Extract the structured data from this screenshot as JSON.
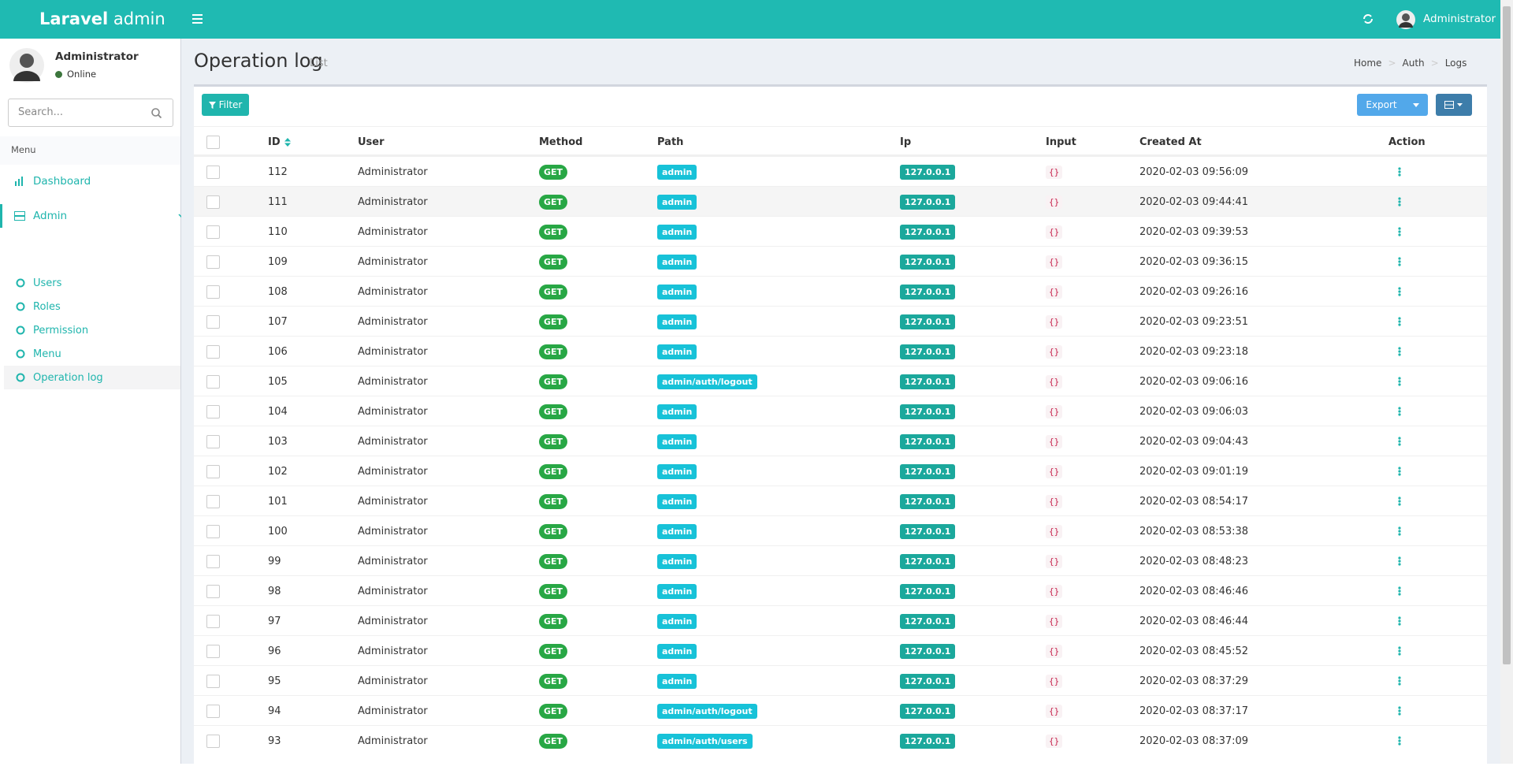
{
  "header": {
    "brand_bold": "Laravel",
    "brand_light": "admin",
    "user": "Administrator"
  },
  "sidebar": {
    "user": "Administrator",
    "status": "Online",
    "search_placeholder": "Search...",
    "menu_label": "Menu",
    "items": [
      "Dashboard",
      "Admin"
    ],
    "children": [
      "Users",
      "Roles",
      "Permission",
      "Menu",
      "Operation log"
    ]
  },
  "page": {
    "title": "Operation log",
    "subtitle": "List",
    "breadcrumb": [
      "Home",
      "Auth",
      "Logs"
    ]
  },
  "toolbar": {
    "filter": "Filter",
    "export": "Export"
  },
  "table": {
    "columns": [
      "ID",
      "User",
      "Method",
      "Path",
      "Ip",
      "Input",
      "Created At",
      "Action"
    ],
    "rows": [
      [
        "112",
        "Administrator",
        "GET",
        "admin",
        "127.0.0.1",
        "{}",
        "2020-02-03 09:56:09"
      ],
      [
        "111",
        "Administrator",
        "GET",
        "admin",
        "127.0.0.1",
        "{}",
        "2020-02-03 09:44:41"
      ],
      [
        "110",
        "Administrator",
        "GET",
        "admin",
        "127.0.0.1",
        "{}",
        "2020-02-03 09:39:53"
      ],
      [
        "109",
        "Administrator",
        "GET",
        "admin",
        "127.0.0.1",
        "{}",
        "2020-02-03 09:36:15"
      ],
      [
        "108",
        "Administrator",
        "GET",
        "admin",
        "127.0.0.1",
        "{}",
        "2020-02-03 09:26:16"
      ],
      [
        "107",
        "Administrator",
        "GET",
        "admin",
        "127.0.0.1",
        "{}",
        "2020-02-03 09:23:51"
      ],
      [
        "106",
        "Administrator",
        "GET",
        "admin",
        "127.0.0.1",
        "{}",
        "2020-02-03 09:23:18"
      ],
      [
        "105",
        "Administrator",
        "GET",
        "admin/auth/logout",
        "127.0.0.1",
        "{}",
        "2020-02-03 09:06:16"
      ],
      [
        "104",
        "Administrator",
        "GET",
        "admin",
        "127.0.0.1",
        "{}",
        "2020-02-03 09:06:03"
      ],
      [
        "103",
        "Administrator",
        "GET",
        "admin",
        "127.0.0.1",
        "{}",
        "2020-02-03 09:04:43"
      ],
      [
        "102",
        "Administrator",
        "GET",
        "admin",
        "127.0.0.1",
        "{}",
        "2020-02-03 09:01:19"
      ],
      [
        "101",
        "Administrator",
        "GET",
        "admin",
        "127.0.0.1",
        "{}",
        "2020-02-03 08:54:17"
      ],
      [
        "100",
        "Administrator",
        "GET",
        "admin",
        "127.0.0.1",
        "{}",
        "2020-02-03 08:53:38"
      ],
      [
        "99",
        "Administrator",
        "GET",
        "admin",
        "127.0.0.1",
        "{}",
        "2020-02-03 08:48:23"
      ],
      [
        "98",
        "Administrator",
        "GET",
        "admin",
        "127.0.0.1",
        "{}",
        "2020-02-03 08:46:46"
      ],
      [
        "97",
        "Administrator",
        "GET",
        "admin",
        "127.0.0.1",
        "{}",
        "2020-02-03 08:46:44"
      ],
      [
        "96",
        "Administrator",
        "GET",
        "admin",
        "127.0.0.1",
        "{}",
        "2020-02-03 08:45:52"
      ],
      [
        "95",
        "Administrator",
        "GET",
        "admin",
        "127.0.0.1",
        "{}",
        "2020-02-03 08:37:29"
      ],
      [
        "94",
        "Administrator",
        "GET",
        "admin/auth/logout",
        "127.0.0.1",
        "{}",
        "2020-02-03 08:37:17"
      ],
      [
        "93",
        "Administrator",
        "GET",
        "admin/auth/users",
        "127.0.0.1",
        "{}",
        "2020-02-03 08:37:09"
      ]
    ]
  }
}
